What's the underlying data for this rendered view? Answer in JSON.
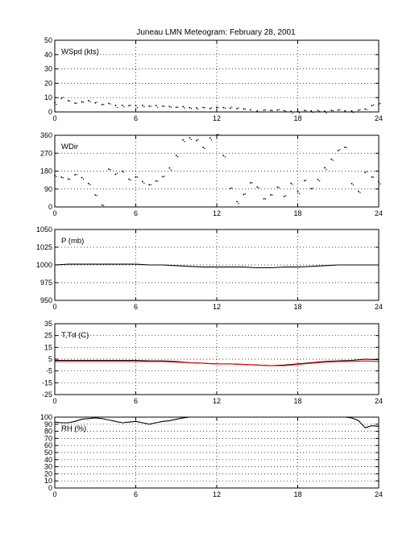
{
  "title": "Juneau LMN Meteogram:  February 28, 2001",
  "chart_data": [
    {
      "type": "scatter",
      "label": "WSpd (kts)",
      "xlim": [
        0,
        24
      ],
      "xticks": [
        0,
        6,
        12,
        18,
        24
      ],
      "ylim": [
        0,
        50
      ],
      "yticks": [
        0,
        10,
        20,
        30,
        40,
        50
      ],
      "grid": true,
      "series": [
        {
          "color": "#000000",
          "marker": "dot",
          "x": [
            0,
            0.5,
            1,
            1.5,
            2,
            2.5,
            3,
            3.5,
            4,
            4.5,
            5,
            5.5,
            6,
            6.5,
            7,
            7.5,
            8,
            8.5,
            9,
            9.5,
            10,
            10.5,
            11,
            11.5,
            12,
            12.5,
            13,
            13.5,
            14,
            14.5,
            15,
            15.5,
            16,
            16.5,
            17,
            17.5,
            18,
            18.5,
            19,
            19.5,
            20,
            20.5,
            21,
            21.5,
            22,
            22.5,
            23,
            23.5,
            24
          ],
          "values": [
            7,
            9,
            8,
            6,
            7,
            8,
            6,
            5,
            6,
            5,
            5,
            4,
            5,
            5,
            4,
            5,
            4,
            4,
            3,
            4,
            3,
            3,
            3,
            2,
            3,
            3,
            2,
            2,
            2,
            2,
            1,
            1,
            1,
            1,
            1,
            1,
            1,
            1,
            1,
            1,
            1,
            1,
            1,
            1,
            1,
            1,
            2,
            4,
            5
          ]
        }
      ]
    },
    {
      "type": "scatter",
      "label": "WDir",
      "xlim": [
        0,
        24
      ],
      "xticks": [
        0,
        6,
        12,
        18,
        24
      ],
      "ylim": [
        0,
        360
      ],
      "yticks": [
        0,
        90,
        180,
        270,
        360
      ],
      "grid": true,
      "series": [
        {
          "color": "#000000",
          "marker": "dot",
          "x": [
            0,
            0.5,
            1,
            1.5,
            2,
            2.5,
            3,
            3.5,
            4,
            4.5,
            5,
            5.5,
            6,
            6.5,
            7,
            7.5,
            8,
            8.5,
            9,
            9.5,
            10,
            10.5,
            11,
            11.5,
            12,
            12.5,
            13,
            13.5,
            14,
            14.5,
            15,
            15.5,
            16,
            16.5,
            17,
            17.5,
            18,
            18.5,
            19,
            19.5,
            20,
            20.5,
            21,
            21.5,
            22,
            22.5,
            23,
            23.5,
            24
          ],
          "values": [
            160,
            150,
            140,
            160,
            150,
            120,
            60,
            10,
            190,
            160,
            180,
            140,
            150,
            130,
            110,
            130,
            150,
            200,
            260,
            340,
            350,
            330,
            300,
            350,
            360,
            260,
            90,
            30,
            60,
            120,
            100,
            40,
            60,
            100,
            50,
            120,
            80,
            130,
            90,
            140,
            200,
            240,
            280,
            300,
            120,
            80,
            170,
            150,
            130
          ]
        }
      ]
    },
    {
      "type": "line",
      "label": "P (mb)",
      "xlim": [
        0,
        24
      ],
      "xticks": [
        0,
        6,
        12,
        18,
        24
      ],
      "ylim": [
        950,
        1050
      ],
      "yticks": [
        950,
        975,
        1000,
        1025,
        1050
      ],
      "grid": true,
      "series": [
        {
          "color": "#000000",
          "x": [
            0,
            1,
            2,
            3,
            4,
            5,
            6,
            7,
            8,
            9,
            10,
            11,
            12,
            13,
            14,
            15,
            16,
            17,
            18,
            19,
            20,
            21,
            22,
            23,
            24
          ],
          "values": [
            1000,
            1001,
            1001,
            1001,
            1001,
            1001,
            1001,
            1000,
            1000,
            999,
            998,
            997,
            997,
            997,
            997,
            996,
            996,
            997,
            997,
            998,
            999,
            1000,
            1000,
            1000,
            1000
          ]
        }
      ]
    },
    {
      "type": "line",
      "label": "T,Td (C)",
      "xlim": [
        0,
        24
      ],
      "xticks": [
        0,
        6,
        12,
        18,
        24
      ],
      "ylim": [
        -25,
        35
      ],
      "yticks": [
        -25,
        -15,
        -5,
        5,
        15,
        25,
        35
      ],
      "grid": true,
      "series": [
        {
          "color": "#000000",
          "x": [
            0,
            1,
            2,
            3,
            4,
            5,
            6,
            7,
            8,
            9,
            10,
            11,
            12,
            13,
            14,
            15,
            16,
            17,
            18,
            19,
            20,
            21,
            22,
            23,
            24
          ],
          "values": [
            4,
            4,
            4,
            4,
            4,
            4,
            4,
            3.5,
            3.5,
            3,
            2,
            1.5,
            1,
            1,
            0.5,
            0,
            -0.5,
            0,
            1,
            2,
            3,
            3.5,
            4,
            5,
            4.5
          ]
        },
        {
          "color": "#ff0000",
          "x": [
            0,
            1,
            2,
            3,
            4,
            5,
            6,
            7,
            8,
            9,
            10,
            11,
            12,
            13,
            14,
            15,
            16,
            17,
            18,
            19,
            20,
            21,
            22,
            23,
            24
          ],
          "values": [
            3,
            3,
            3,
            3,
            3,
            3,
            3,
            3,
            3,
            2.5,
            2,
            1.5,
            1,
            1,
            0.5,
            0,
            -0.5,
            -0.5,
            0.5,
            1.5,
            2.5,
            3,
            3,
            3.5,
            3
          ]
        }
      ]
    },
    {
      "type": "line",
      "label": "RH (%)",
      "xlim": [
        0,
        24
      ],
      "xticks": [
        0,
        6,
        12,
        18,
        24
      ],
      "ylim": [
        0,
        100
      ],
      "yticks": [
        0,
        10,
        20,
        30,
        40,
        50,
        60,
        70,
        80,
        90,
        100
      ],
      "grid": true,
      "series": [
        {
          "color": "#000000",
          "x": [
            0,
            0.5,
            1,
            1.5,
            2,
            2.5,
            3,
            3.5,
            4,
            4.5,
            5,
            5.5,
            6,
            6.5,
            7,
            7.5,
            8,
            8.5,
            9,
            9.5,
            10,
            10.5,
            11,
            11.5,
            12,
            13,
            14,
            15,
            16,
            17,
            18,
            19,
            20,
            21,
            21.5,
            22,
            22.5,
            23,
            23.5,
            24
          ],
          "values": [
            93,
            92,
            92,
            94,
            97,
            98,
            99,
            98,
            96,
            94,
            92,
            93,
            94,
            92,
            90,
            92,
            94,
            95,
            97,
            99,
            100,
            100,
            100,
            100,
            100,
            100,
            100,
            100,
            100,
            100,
            100,
            100,
            100,
            100,
            100,
            99,
            95,
            85,
            88,
            87
          ]
        }
      ]
    }
  ]
}
